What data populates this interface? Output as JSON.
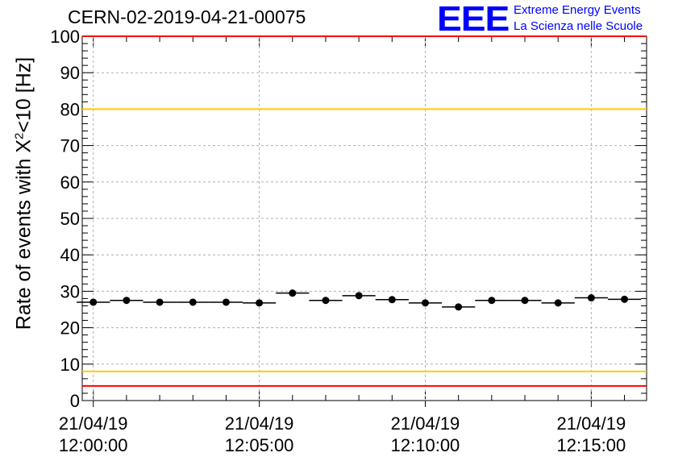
{
  "header": {
    "title": "CERN-02-2019-04-21-00075",
    "logo_text": "EEE",
    "logo_line1": "Extreme Energy Events",
    "logo_line2": "La Scienza nelle Scuole"
  },
  "colors": {
    "marker": "#000000",
    "red_limit": "#ff0000",
    "yellow_limit": "#ffcc00",
    "grid": "#b0b0b0",
    "logo": "#0000ff"
  },
  "chart_data": {
    "type": "scatter",
    "title": "CERN-02-2019-04-21-00075",
    "ylabel_main": "Rate of events with ",
    "ylabel_symbol": "X",
    "ylabel_sup": "2",
    "ylabel_rest": "<10 [Hz]",
    "ylim": [
      0,
      100
    ],
    "y_ticks": [
      "0",
      "10",
      "20",
      "30",
      "40",
      "50",
      "60",
      "70",
      "80",
      "90",
      "100"
    ],
    "x_tick_labels": [
      {
        "date": "21/04/19",
        "time": "12:00:00"
      },
      {
        "date": "21/04/19",
        "time": "12:05:00"
      },
      {
        "date": "21/04/19",
        "time": "12:10:00"
      },
      {
        "date": "21/04/19",
        "time": "12:15:00"
      }
    ],
    "xlim": [
      "11:59:40",
      "12:16:40"
    ],
    "bin_width_seconds": 60,
    "grid": true,
    "reference_lines": [
      {
        "y": 100,
        "color": "red"
      },
      {
        "y": 80,
        "color": "yellow"
      },
      {
        "y": 8,
        "color": "yellow"
      },
      {
        "y": 4,
        "color": "red"
      }
    ],
    "series": [
      {
        "x": [
          "12:00:00",
          "12:01:00",
          "12:02:00",
          "12:03:00",
          "12:04:00",
          "12:05:00",
          "12:06:00",
          "12:07:00",
          "12:08:00",
          "12:09:00",
          "12:10:00",
          "12:11:00",
          "12:12:00",
          "12:13:00",
          "12:14:00",
          "12:15:00",
          "12:16:00"
        ],
        "values": [
          27,
          27.5,
          27,
          27,
          27,
          26.8,
          29.5,
          27.5,
          28.8,
          27.7,
          26.8,
          25.7,
          27.5,
          27.5,
          26.8,
          28.2,
          27.8
        ]
      }
    ]
  }
}
